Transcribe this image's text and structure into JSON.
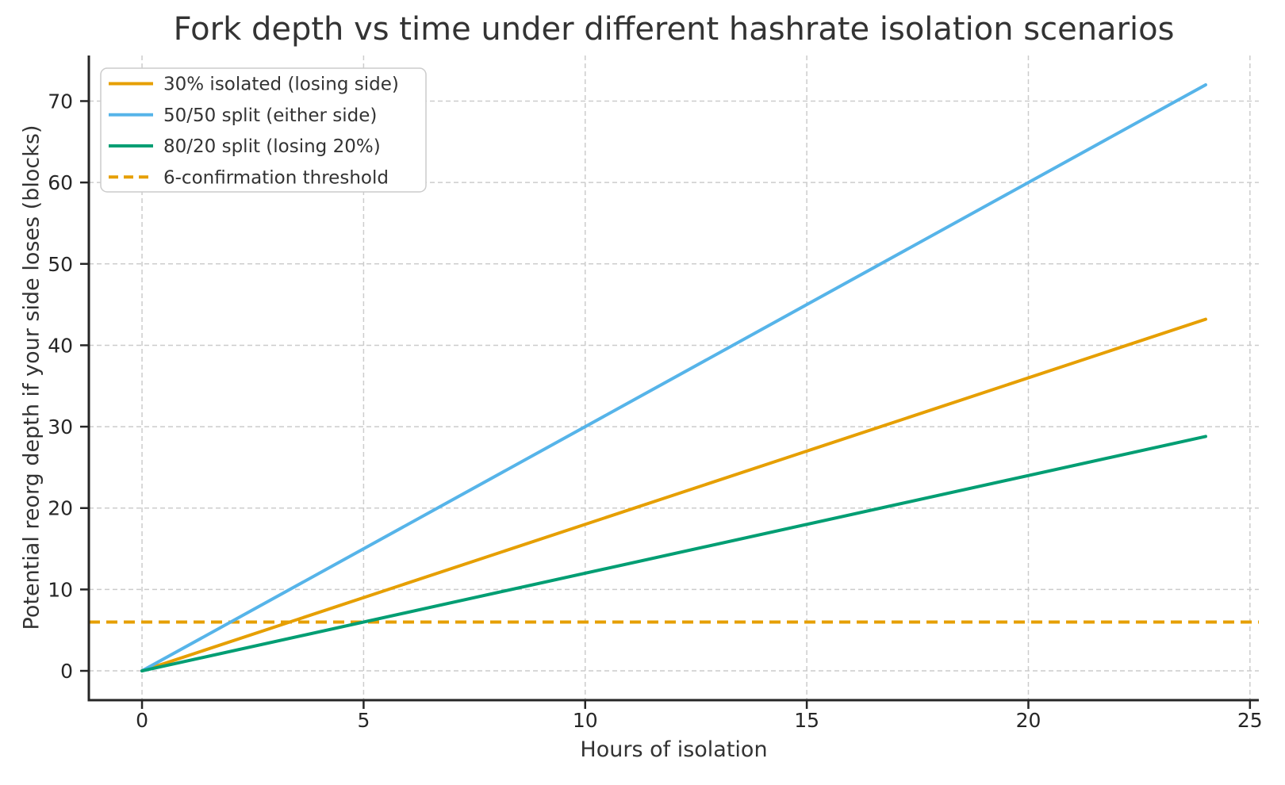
{
  "chart_data": {
    "type": "line",
    "title": "Fork depth vs time under different hashrate isolation scenarios",
    "xlabel": "Hours of isolation",
    "ylabel": "Potential reorg depth if your side loses (blocks)",
    "xlim": [
      -1.2,
      25.2
    ],
    "ylim": [
      -3.6,
      75.6
    ],
    "xticks": [
      0,
      5,
      10,
      15,
      20,
      25
    ],
    "yticks": [
      0,
      10,
      20,
      30,
      40,
      50,
      60,
      70
    ],
    "grid": true,
    "grid_color": "#cccccc",
    "axis_color": "#262626",
    "tick_color": "#262626",
    "text_color": "#333333",
    "background": "#ffffff",
    "legend": {
      "position": "upper-left",
      "background": "#ffffff",
      "border_color": "#cccccc"
    },
    "series": [
      {
        "name": "30% isolated (losing side)",
        "color": "#E69F00",
        "dash": "solid",
        "z": 2,
        "x": [
          0,
          24
        ],
        "y": [
          0,
          43.2
        ]
      },
      {
        "name": "50/50 split (either side)",
        "color": "#56B4E9",
        "dash": "solid",
        "z": 2,
        "x": [
          0,
          24
        ],
        "y": [
          0,
          72
        ]
      },
      {
        "name": "80/20 split (losing 20%)",
        "color": "#009E73",
        "dash": "solid",
        "z": 2,
        "x": [
          0,
          24
        ],
        "y": [
          0,
          28.8
        ]
      },
      {
        "name": "6-confirmation threshold",
        "color": "#E69F00",
        "dash": "dashed",
        "z": 1,
        "x": [
          -1.2,
          25.2
        ],
        "y": [
          6,
          6
        ]
      }
    ]
  }
}
